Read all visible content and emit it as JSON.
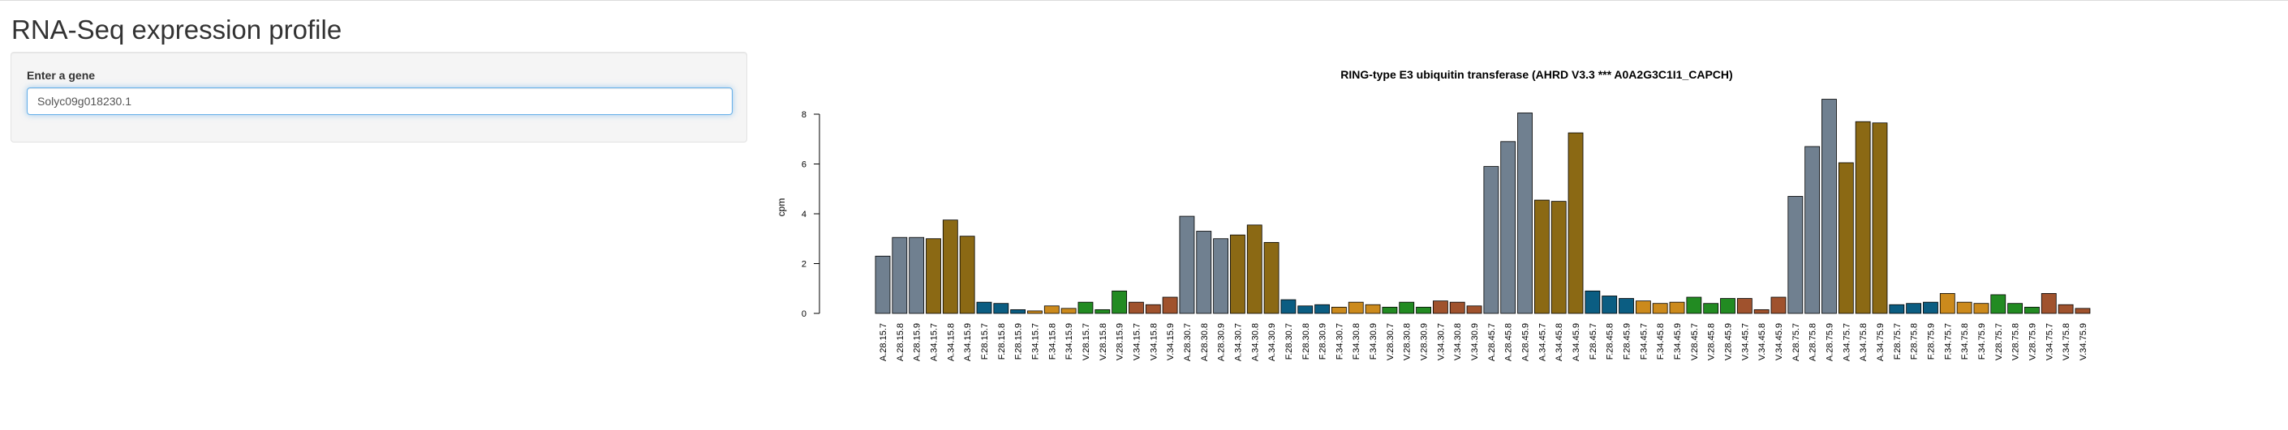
{
  "page": {
    "title": "RNA-Seq expression profile"
  },
  "sidebar": {
    "input_label": "Enter a gene",
    "input_value": "Solyc09g018230.1"
  },
  "colors": {
    "gray": "#708090",
    "blue": "#0b5d82",
    "gold": "#8b6914",
    "orange": "#cc8a1c",
    "green": "#228b22",
    "brown": "#a0522d"
  },
  "chart_data": {
    "type": "bar",
    "title": "RING-type E3 ubiquitin transferase (AHRD V3.3 *** A0A2G3C1I1_CAPCH)",
    "xlabel": "",
    "ylabel": "cpm",
    "ylim": [
      0,
      8
    ],
    "yticks": [
      0,
      2,
      4,
      6,
      8
    ],
    "grid": false,
    "legend": "none",
    "categories": [
      "A.28.15.7",
      "A.28.15.8",
      "A.28.15.9",
      "A.34.15.7",
      "A.34.15.8",
      "A.34.15.9",
      "F.28.15.7",
      "F.28.15.8",
      "F.28.15.9",
      "F.34.15.7",
      "F.34.15.8",
      "F.34.15.9",
      "V.28.15.7",
      "V.28.15.8",
      "V.28.15.9",
      "V.34.15.7",
      "V.34.15.8",
      "V.34.15.9",
      "A.28.30.7",
      "A.28.30.8",
      "A.28.30.9",
      "A.34.30.7",
      "A.34.30.8",
      "A.34.30.9",
      "F.28.30.7",
      "F.28.30.8",
      "F.28.30.9",
      "F.34.30.7",
      "F.34.30.8",
      "F.34.30.9",
      "V.28.30.7",
      "V.28.30.8",
      "V.28.30.9",
      "V.34.30.7",
      "V.34.30.8",
      "V.34.30.9",
      "A.28.45.7",
      "A.28.45.8",
      "A.28.45.9",
      "A.34.45.7",
      "A.34.45.8",
      "A.34.45.9",
      "F.28.45.7",
      "F.28.45.8",
      "F.28.45.9",
      "F.34.45.7",
      "F.34.45.8",
      "F.34.45.9",
      "V.28.45.7",
      "V.28.45.8",
      "V.28.45.9",
      "V.34.45.7",
      "V.34.45.8",
      "V.34.45.9",
      "A.28.75.7",
      "A.28.75.8",
      "A.28.75.9",
      "A.34.75.7",
      "A.34.75.8",
      "A.34.75.9",
      "F.28.75.7",
      "F.28.75.8",
      "F.28.75.9",
      "F.34.75.7",
      "F.34.75.8",
      "F.34.75.9",
      "V.28.75.7",
      "V.28.75.8",
      "V.28.75.9",
      "V.34.75.7",
      "V.34.75.8",
      "V.34.75.9"
    ],
    "values": [
      2.3,
      3.05,
      3.05,
      3.0,
      3.75,
      3.1,
      0.45,
      0.4,
      0.15,
      0.1,
      0.3,
      0.2,
      0.45,
      0.15,
      0.9,
      0.45,
      0.35,
      0.65,
      3.9,
      3.3,
      3.0,
      3.15,
      3.55,
      2.85,
      0.55,
      0.3,
      0.35,
      0.25,
      0.45,
      0.35,
      0.25,
      0.45,
      0.25,
      0.5,
      0.45,
      0.3,
      5.9,
      6.9,
      8.05,
      4.55,
      4.5,
      7.25,
      0.9,
      0.7,
      0.6,
      0.5,
      0.4,
      0.45,
      0.65,
      0.4,
      0.6,
      0.6,
      0.15,
      0.65,
      4.7,
      6.7,
      8.6,
      6.05,
      7.7,
      7.65,
      0.35,
      0.4,
      0.45,
      0.8,
      0.45,
      0.4,
      0.75,
      0.4,
      0.25,
      0.8,
      0.35,
      0.2
    ],
    "bar_colors": [
      "gray",
      "gray",
      "gray",
      "gold",
      "gold",
      "gold",
      "blue",
      "blue",
      "blue",
      "orange",
      "orange",
      "orange",
      "green",
      "green",
      "green",
      "brown",
      "brown",
      "brown",
      "gray",
      "gray",
      "gray",
      "gold",
      "gold",
      "gold",
      "blue",
      "blue",
      "blue",
      "orange",
      "orange",
      "orange",
      "green",
      "green",
      "green",
      "brown",
      "brown",
      "brown",
      "gray",
      "gray",
      "gray",
      "gold",
      "gold",
      "gold",
      "blue",
      "blue",
      "blue",
      "orange",
      "orange",
      "orange",
      "green",
      "green",
      "green",
      "brown",
      "brown",
      "brown",
      "gray",
      "gray",
      "gray",
      "gold",
      "gold",
      "gold",
      "blue",
      "blue",
      "blue",
      "orange",
      "orange",
      "orange",
      "green",
      "green",
      "green",
      "brown",
      "brown",
      "brown"
    ]
  }
}
